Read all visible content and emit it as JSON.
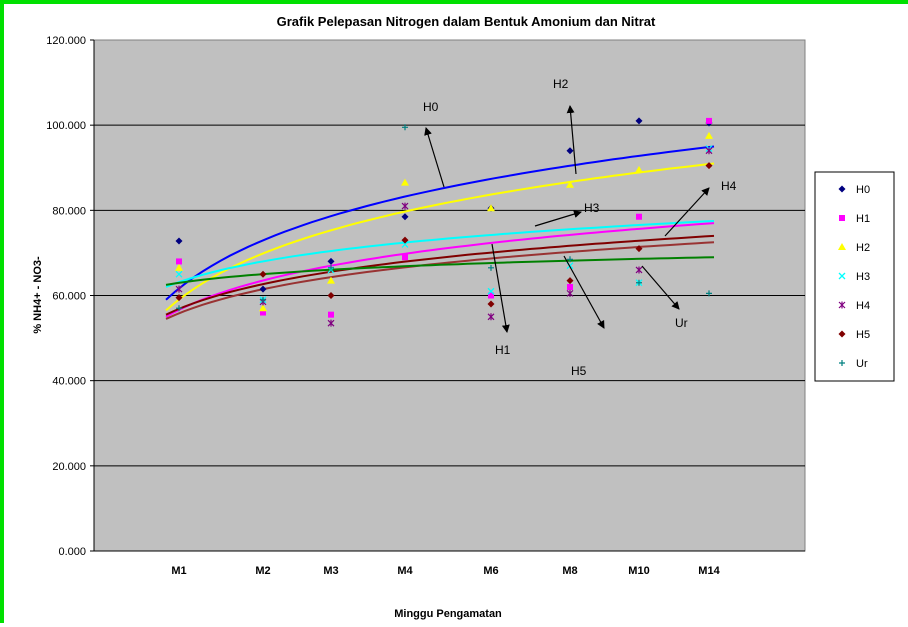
{
  "chart_data": {
    "type": "scatter",
    "title": "Grafik Pelepasan Nitrogen dalam Bentuk Amonium dan Nitrat",
    "xlabel": "Minggu Pengamatan",
    "ylabel": "% NH4+ - NO3-",
    "categories": [
      "M1",
      "M2",
      "M3",
      "M4",
      "M6",
      "M8",
      "M10",
      "M14"
    ],
    "ylim": [
      0,
      120
    ],
    "yticks": [
      "0.000",
      "20.000",
      "40.000",
      "60.000",
      "80.000",
      "100.000",
      "120.000"
    ],
    "grid": true,
    "legend_position": "right",
    "plot_background": "#c0c0c0",
    "series": [
      {
        "name": "H0",
        "color": "#000080",
        "marker": "diamond",
        "values": [
          72.8,
          61.5,
          68.0,
          78.5,
          80.5,
          94.0,
          101.0,
          100.5
        ],
        "trendline": {
          "type": "logarithmic",
          "start": 59.0,
          "end": 95.0,
          "color": "#0000ff"
        }
      },
      {
        "name": "H1",
        "color": "#ff00ff",
        "marker": "square",
        "values": [
          68.0,
          56.0,
          55.5,
          69.0,
          60.0,
          62.0,
          78.5,
          101.0
        ],
        "trendline": {
          "type": "logarithmic",
          "start": 55.0,
          "end": 77.0,
          "color": "#ff00ff"
        }
      },
      {
        "name": "H2",
        "color": "#ffff00",
        "marker": "triangle",
        "values": [
          66.5,
          57.0,
          63.5,
          86.5,
          80.5,
          86.0,
          89.5,
          97.5
        ],
        "trendline": {
          "type": "logarithmic",
          "start": 56.5,
          "end": 91.0,
          "color": "#ffff00"
        }
      },
      {
        "name": "H3",
        "color": "#00ffff",
        "marker": "x",
        "values": [
          65.0,
          59.0,
          66.0,
          72.0,
          61.0,
          67.0,
          63.0,
          94.5
        ],
        "trendline": {
          "type": "logarithmic",
          "start": 62.0,
          "end": 77.5,
          "color": "#00ffff"
        }
      },
      {
        "name": "H4",
        "color": "#800080",
        "marker": "asterisk",
        "values": [
          61.5,
          58.5,
          53.5,
          81.0,
          55.0,
          60.5,
          66.0,
          94.0
        ],
        "trendline": {
          "type": "logarithmic",
          "start": 55.5,
          "end": 74.0,
          "color": "#800000"
        }
      },
      {
        "name": "H5",
        "color": "#800000",
        "marker": "diamond",
        "values": [
          59.5,
          65.0,
          60.0,
          73.0,
          58.0,
          63.5,
          71.0,
          90.5
        ],
        "trendline": {
          "type": "logarithmic",
          "start": 54.5,
          "end": 72.5,
          "color": "#993333"
        }
      },
      {
        "name": "Ur",
        "color": "#008080",
        "marker": "plus",
        "values": [
          57.0,
          59.0,
          66.5,
          99.5,
          66.5,
          68.5,
          63.0,
          60.5
        ],
        "trendline": {
          "type": "logarithmic",
          "start": 62.5,
          "end": 69.0,
          "color": "#008000"
        }
      }
    ],
    "annotations": [
      "H0",
      "H2",
      "H3",
      "H4",
      "H1",
      "H5",
      "Ur"
    ]
  }
}
